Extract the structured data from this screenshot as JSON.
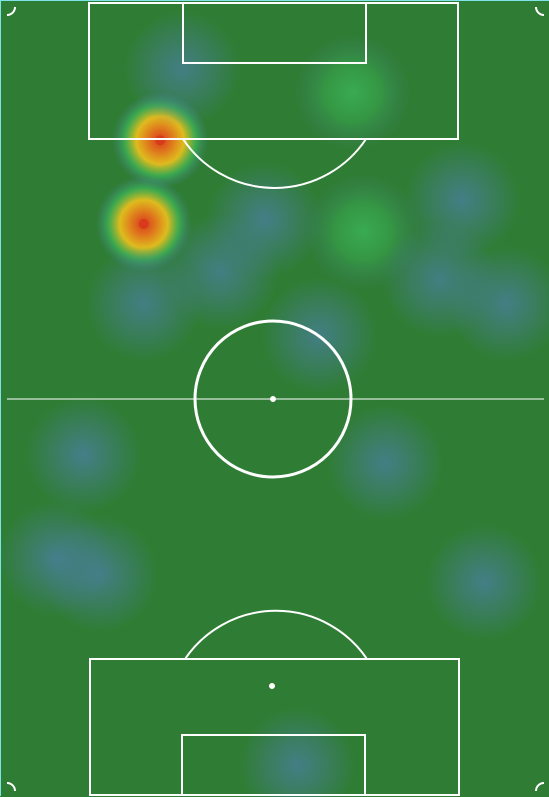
{
  "colors": {
    "pitch": "#2f7d34",
    "lines": "#ffffff",
    "frame": "#7fe3e8",
    "heat_low": "#4a7ea0",
    "heat_mid": "#3dba5a",
    "heat_high": "#f2c21b",
    "heat_peak": "#d83a1c"
  },
  "chart_data": {
    "type": "heatmap",
    "title": "",
    "xlabel": "",
    "ylabel": "",
    "grid": false,
    "legend": "none",
    "x_range": [
      0,
      100
    ],
    "y_range": [
      0,
      100
    ],
    "points": [
      {
        "x": 29,
        "y": 17.5,
        "intensity": 1.0
      },
      {
        "x": 26,
        "y": 28,
        "intensity": 0.95
      },
      {
        "x": 64,
        "y": 11.5,
        "intensity": 0.45
      },
      {
        "x": 66,
        "y": 29,
        "intensity": 0.42
      },
      {
        "x": 48,
        "y": 27.5,
        "intensity": 0.32
      },
      {
        "x": 84,
        "y": 25,
        "intensity": 0.28
      },
      {
        "x": 92,
        "y": 38,
        "intensity": 0.25
      },
      {
        "x": 33,
        "y": 8.5,
        "intensity": 0.22
      },
      {
        "x": 26,
        "y": 38,
        "intensity": 0.22
      },
      {
        "x": 58,
        "y": 42,
        "intensity": 0.22
      },
      {
        "x": 15,
        "y": 57,
        "intensity": 0.35
      },
      {
        "x": 70,
        "y": 58,
        "intensity": 0.25
      },
      {
        "x": 10,
        "y": 70,
        "intensity": 0.32
      },
      {
        "x": 18,
        "y": 72,
        "intensity": 0.26
      },
      {
        "x": 88,
        "y": 73,
        "intensity": 0.28
      },
      {
        "x": 54,
        "y": 96,
        "intensity": 0.25
      },
      {
        "x": 40,
        "y": 34,
        "intensity": 0.2
      },
      {
        "x": 80,
        "y": 35,
        "intensity": 0.2
      }
    ]
  }
}
